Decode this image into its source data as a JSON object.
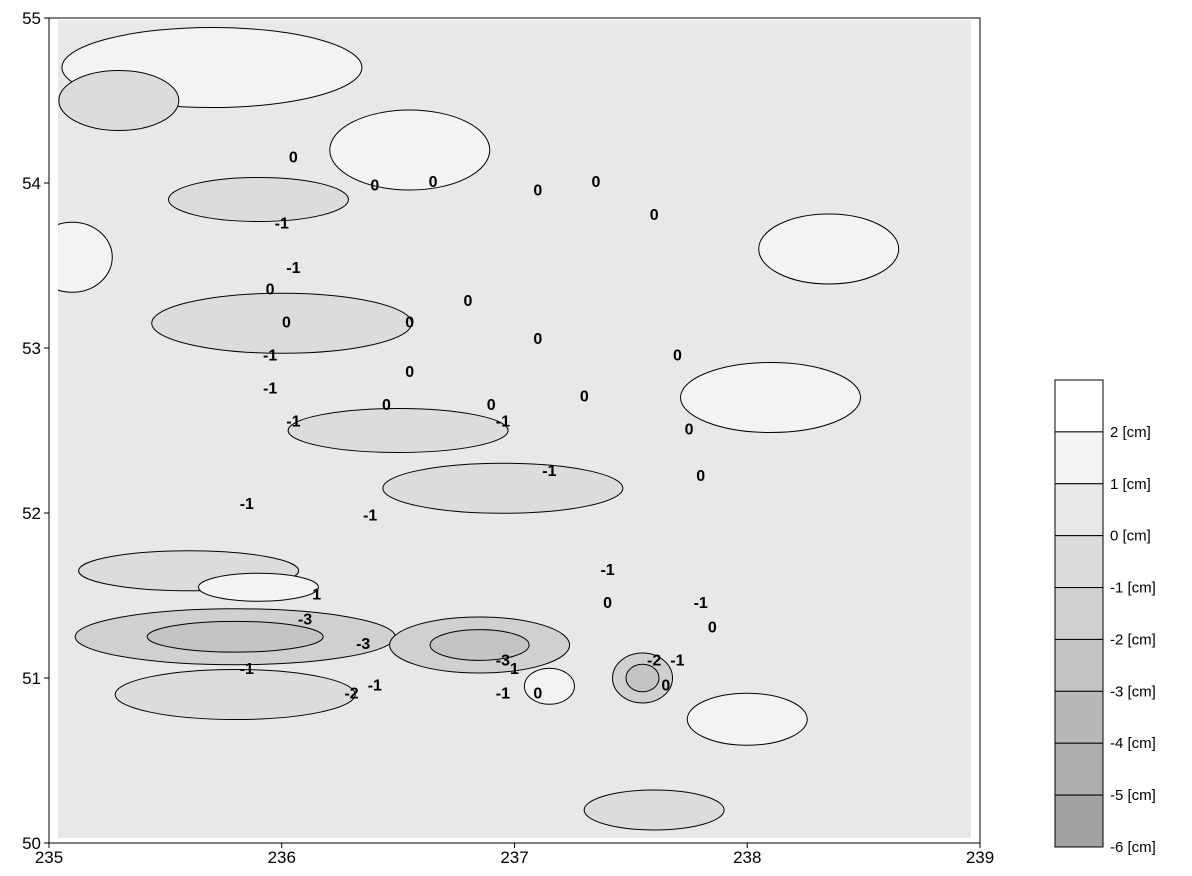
{
  "chart_data": {
    "type": "contour",
    "title": "",
    "xlabel": "",
    "ylabel": "",
    "xlim": [
      235,
      239
    ],
    "ylim": [
      50,
      55
    ],
    "x_ticks": [
      "235",
      "236",
      "237",
      "238",
      "239"
    ],
    "y_ticks": [
      "50",
      "51",
      "52",
      "53",
      "54",
      "55"
    ],
    "grid": false,
    "legend_position": "right",
    "unit": "cm",
    "legend": [
      {
        "label": "2 [cm]",
        "color": "#ffffff"
      },
      {
        "label": "1 [cm]",
        "color": "#f3f3f3"
      },
      {
        "label": "0 [cm]",
        "color": "#e8e8e8"
      },
      {
        "label": "-1 [cm]",
        "color": "#dcdcdc"
      },
      {
        "label": "-2 [cm]",
        "color": "#d0d0d0"
      },
      {
        "label": "-3 [cm]",
        "color": "#c4c4c4"
      },
      {
        "label": "-4 [cm]",
        "color": "#b8b8b8"
      },
      {
        "label": "-5 [cm]",
        "color": "#adadad"
      },
      {
        "label": "-6 [cm]",
        "color": "#a2a2a2"
      }
    ],
    "background_level": "0",
    "regions": [
      {
        "level": "1",
        "x": 235.7,
        "y": 54.7
      },
      {
        "level": "-1",
        "x": 235.3,
        "y": 54.5
      },
      {
        "level": "1",
        "x": 235.1,
        "y": 53.55
      },
      {
        "level": "-1",
        "x": 235.9,
        "y": 53.9
      },
      {
        "level": "1",
        "x": 236.55,
        "y": 54.2
      },
      {
        "level": "-1",
        "x": 236.0,
        "y": 53.15
      },
      {
        "level": "-1",
        "x": 236.5,
        "y": 52.5
      },
      {
        "level": "-1",
        "x": 236.95,
        "y": 52.15
      },
      {
        "level": "1",
        "x": 238.35,
        "y": 53.6
      },
      {
        "level": "1",
        "x": 238.1,
        "y": 52.7
      },
      {
        "level": "-1",
        "x": 235.6,
        "y": 51.65
      },
      {
        "level": "1",
        "x": 235.9,
        "y": 51.55
      },
      {
        "level": "-2",
        "x": 235.8,
        "y": 51.25
      },
      {
        "level": "-2",
        "x": 236.85,
        "y": 51.2
      },
      {
        "level": "1",
        "x": 237.15,
        "y": 50.95
      },
      {
        "level": "-2",
        "x": 237.55,
        "y": 51.0
      },
      {
        "level": "-1",
        "x": 235.8,
        "y": 50.9
      },
      {
        "level": "1",
        "x": 238.0,
        "y": 50.75
      },
      {
        "level": "-1",
        "x": 237.6,
        "y": 50.2
      }
    ],
    "contour_labels": [
      "0",
      "0",
      "0",
      "0",
      "0",
      "0",
      "-1",
      "-1",
      "0",
      "0",
      "0",
      "0",
      "0",
      "0",
      "-1",
      "0",
      "0",
      "-1",
      "-1",
      "0",
      "-1",
      "0",
      "-1",
      "-1",
      "-1",
      "0",
      "-1",
      "0",
      "1",
      "-3",
      "-3",
      "-1",
      "-2",
      "-1",
      "-3",
      "1",
      "-1",
      "0",
      "-2",
      "-1",
      "0",
      "-1",
      "0",
      "0"
    ]
  }
}
